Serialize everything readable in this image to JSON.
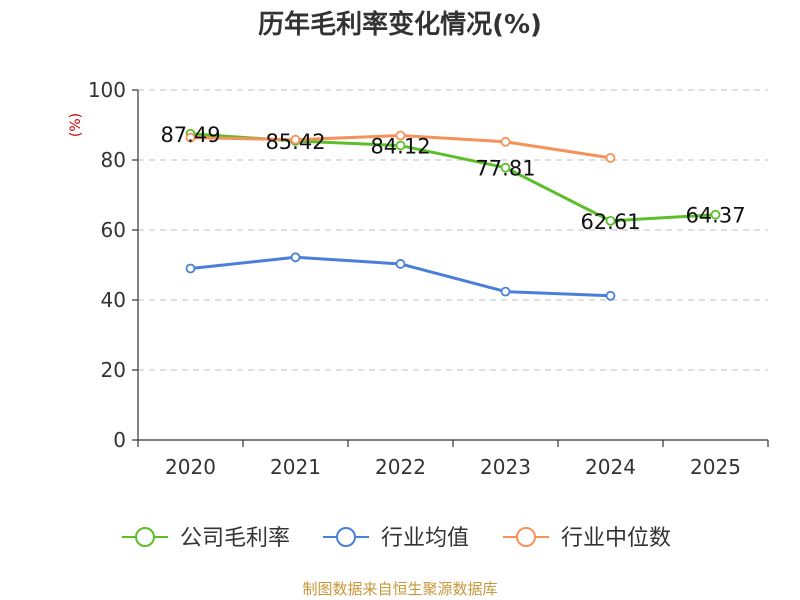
{
  "chart_data": {
    "type": "line",
    "title": "历年毛利率变化情况(%)",
    "ylabel": "(%)",
    "categories": [
      "2020",
      "2021",
      "2022",
      "2023",
      "2024",
      "2025"
    ],
    "ylim": [
      0,
      100
    ],
    "yticks": [
      0,
      20,
      40,
      60,
      80,
      100
    ],
    "grid": true,
    "legend_position": "bottom",
    "series": [
      {
        "name": "公司毛利率",
        "color": "#5cbf2a",
        "values": [
          87.49,
          85.42,
          84.12,
          77.81,
          62.61,
          64.37
        ],
        "labels": [
          "87.49",
          "85.42",
          "84.12",
          "77.81",
          "62.61",
          "64.37"
        ]
      },
      {
        "name": "行业均值",
        "color": "#4a7fd9",
        "values": [
          49.0,
          52.2,
          50.3,
          42.4,
          41.2,
          null
        ]
      },
      {
        "name": "行业中位数",
        "color": "#f5925a",
        "values": [
          86.4,
          85.8,
          87.0,
          85.2,
          80.6,
          null
        ]
      }
    ]
  },
  "source": "制图数据来自恒生聚源数据库"
}
